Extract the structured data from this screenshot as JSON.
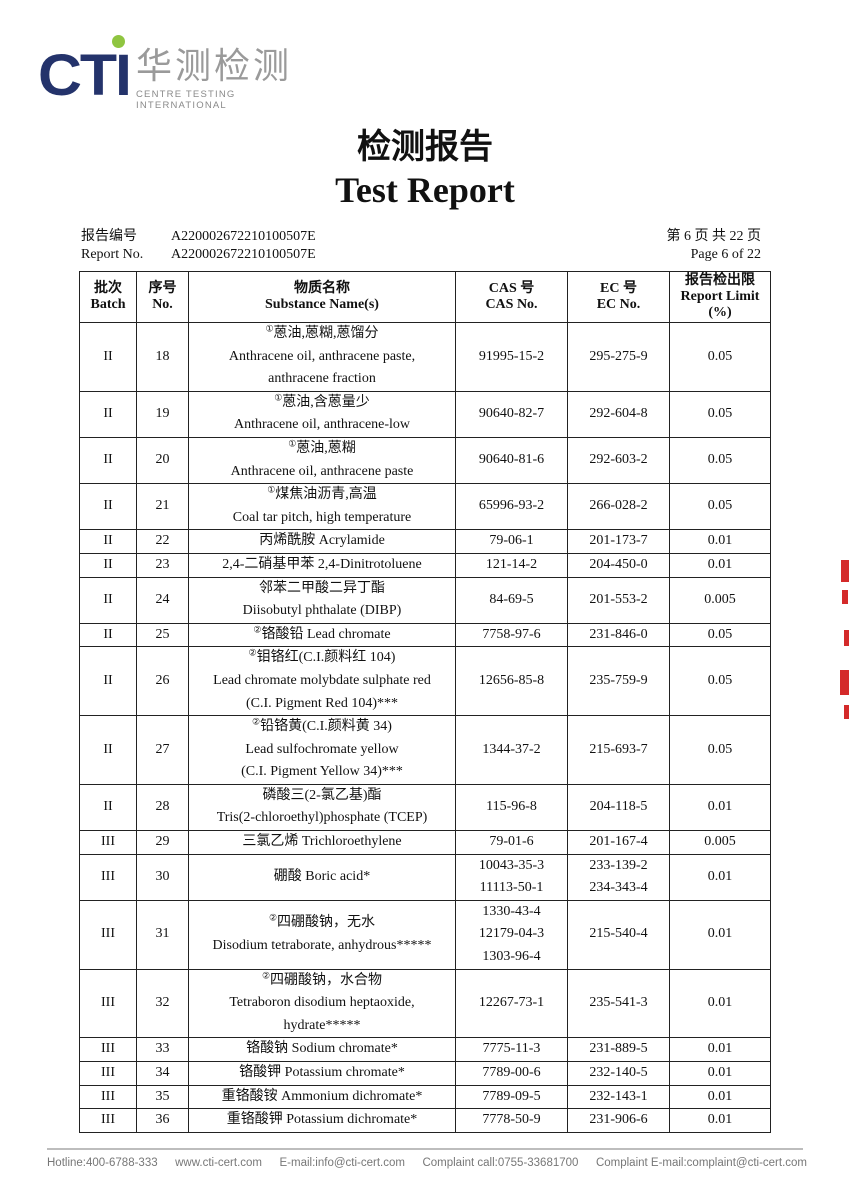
{
  "logo": {
    "brand": "CTI",
    "chinese": "华测检测",
    "english": "CENTRE TESTING INTERNATIONAL"
  },
  "title": {
    "cn": "检测报告",
    "en": "Test Report"
  },
  "report": {
    "number_label_cn": "报告编号",
    "number_label_en": "Report No.",
    "number": "A220002672210100507E",
    "page_cn": "第 6 页  共 22 页",
    "page_en": "Page 6 of 22"
  },
  "table": {
    "headers": [
      {
        "cn": "批次",
        "en": "Batch"
      },
      {
        "cn": "序号",
        "en": "No."
      },
      {
        "cn": "物质名称",
        "en": "Substance Name(s)"
      },
      {
        "cn": "CAS 号",
        "en": "CAS No."
      },
      {
        "cn": "EC 号",
        "en": "EC No."
      },
      {
        "cn": "报告检出限",
        "en": "Report Limit",
        "en2": "(%)"
      }
    ],
    "rows": [
      {
        "batch": "II",
        "no": "18",
        "mark": "①",
        "name": [
          "蒽油,蒽糊,蒽馏分",
          "Anthracene oil, anthracene paste,",
          "anthracene fraction"
        ],
        "cas": [
          "91995-15-2"
        ],
        "ec": [
          "295-275-9"
        ],
        "limit": "0.05"
      },
      {
        "batch": "II",
        "no": "19",
        "mark": "①",
        "name": [
          "蒽油,含蒽量少",
          "Anthracene oil, anthracene-low"
        ],
        "cas": [
          "90640-82-7"
        ],
        "ec": [
          "292-604-8"
        ],
        "limit": "0.05"
      },
      {
        "batch": "II",
        "no": "20",
        "mark": "①",
        "name": [
          "蒽油,蒽糊",
          "Anthracene oil, anthracene paste"
        ],
        "cas": [
          "90640-81-6"
        ],
        "ec": [
          "292-603-2"
        ],
        "limit": "0.05"
      },
      {
        "batch": "II",
        "no": "21",
        "mark": "①",
        "name": [
          "煤焦油沥青,高温",
          "Coal tar pitch, high temperature"
        ],
        "cas": [
          "65996-93-2"
        ],
        "ec": [
          "266-028-2"
        ],
        "limit": "0.05"
      },
      {
        "batch": "II",
        "no": "22",
        "mark": "",
        "name": [
          "丙烯酰胺 Acrylamide"
        ],
        "cas": [
          "79-06-1"
        ],
        "ec": [
          "201-173-7"
        ],
        "limit": "0.01"
      },
      {
        "batch": "II",
        "no": "23",
        "mark": "",
        "name": [
          "2,4-二硝基甲苯 2,4-Dinitrotoluene"
        ],
        "cas": [
          "121-14-2"
        ],
        "ec": [
          "204-450-0"
        ],
        "limit": "0.01"
      },
      {
        "batch": "II",
        "no": "24",
        "mark": "",
        "name": [
          "邻苯二甲酸二异丁酯",
          "Diisobutyl phthalate (DIBP)"
        ],
        "cas": [
          "84-69-5"
        ],
        "ec": [
          "201-553-2"
        ],
        "limit": "0.005"
      },
      {
        "batch": "II",
        "no": "25",
        "mark": "②",
        "name": [
          "铬酸铅 Lead chromate"
        ],
        "cas": [
          "7758-97-6"
        ],
        "ec": [
          "231-846-0"
        ],
        "limit": "0.05"
      },
      {
        "batch": "II",
        "no": "26",
        "mark": "②",
        "name": [
          "钼铬红(C.I.颜料红 104)",
          "Lead chromate molybdate sulphate red",
          "(C.I. Pigment Red 104)***"
        ],
        "cas": [
          "12656-85-8"
        ],
        "ec": [
          "235-759-9"
        ],
        "limit": "0.05"
      },
      {
        "batch": "II",
        "no": "27",
        "mark": "②",
        "name": [
          "铅铬黄(C.I.颜料黄 34)",
          "Lead sulfochromate yellow",
          "(C.I. Pigment Yellow 34)***"
        ],
        "cas": [
          "1344-37-2"
        ],
        "ec": [
          "215-693-7"
        ],
        "limit": "0.05"
      },
      {
        "batch": "II",
        "no": "28",
        "mark": "",
        "name": [
          "磷酸三(2-氯乙基)酯",
          "Tris(2-chloroethyl)phosphate (TCEP)"
        ],
        "cas": [
          "115-96-8"
        ],
        "ec": [
          "204-118-5"
        ],
        "limit": "0.01"
      },
      {
        "batch": "III",
        "no": "29",
        "mark": "",
        "name": [
          "三氯乙烯 Trichloroethylene"
        ],
        "cas": [
          "79-01-6"
        ],
        "ec": [
          "201-167-4"
        ],
        "limit": "0.005"
      },
      {
        "batch": "III",
        "no": "30",
        "mark": "",
        "name": [
          "硼酸 Boric acid*"
        ],
        "cas": [
          "10043-35-3",
          "11113-50-1"
        ],
        "ec": [
          "233-139-2",
          "234-343-4"
        ],
        "limit": "0.01"
      },
      {
        "batch": "III",
        "no": "31",
        "mark": "②",
        "name": [
          "四硼酸钠，无水",
          "Disodium tetraborate, anhydrous*****"
        ],
        "cas": [
          "1330-43-4",
          "12179-04-3",
          "1303-96-4"
        ],
        "ec": [
          "215-540-4"
        ],
        "limit": "0.01"
      },
      {
        "batch": "III",
        "no": "32",
        "mark": "②",
        "name": [
          "四硼酸钠，水合物",
          "Tetraboron disodium heptaoxide,",
          "hydrate*****"
        ],
        "cas": [
          "12267-73-1"
        ],
        "ec": [
          "235-541-3"
        ],
        "limit": "0.01"
      },
      {
        "batch": "III",
        "no": "33",
        "mark": "",
        "name": [
          "铬酸钠 Sodium chromate*"
        ],
        "cas": [
          "7775-11-3"
        ],
        "ec": [
          "231-889-5"
        ],
        "limit": "0.01"
      },
      {
        "batch": "III",
        "no": "34",
        "mark": "",
        "name": [
          "铬酸钾 Potassium chromate*"
        ],
        "cas": [
          "7789-00-6"
        ],
        "ec": [
          "232-140-5"
        ],
        "limit": "0.01"
      },
      {
        "batch": "III",
        "no": "35",
        "mark": "",
        "name": [
          "重铬酸铵 Ammonium dichromate*"
        ],
        "cas": [
          "7789-09-5"
        ],
        "ec": [
          "232-143-1"
        ],
        "limit": "0.01"
      },
      {
        "batch": "III",
        "no": "36",
        "mark": "",
        "name": [
          "重铬酸钾  Potassium dichromate*"
        ],
        "cas": [
          "7778-50-9"
        ],
        "ec": [
          "231-906-6"
        ],
        "limit": "0.01"
      }
    ]
  },
  "footer": {
    "hotline": "Hotline:400-6788-333",
    "website": "www.cti-cert.com",
    "email": "E-mail:info@cti-cert.com",
    "complaint_call": "Complaint call:0755-33681700",
    "complaint_email": "Complaint E-mail:complaint@cti-cert.com"
  },
  "colors": {
    "brand_navy": "#24336b",
    "brand_green": "#8fc540",
    "logo_gray": "#9a9a9a",
    "stamp_red": "#d42a2a"
  }
}
